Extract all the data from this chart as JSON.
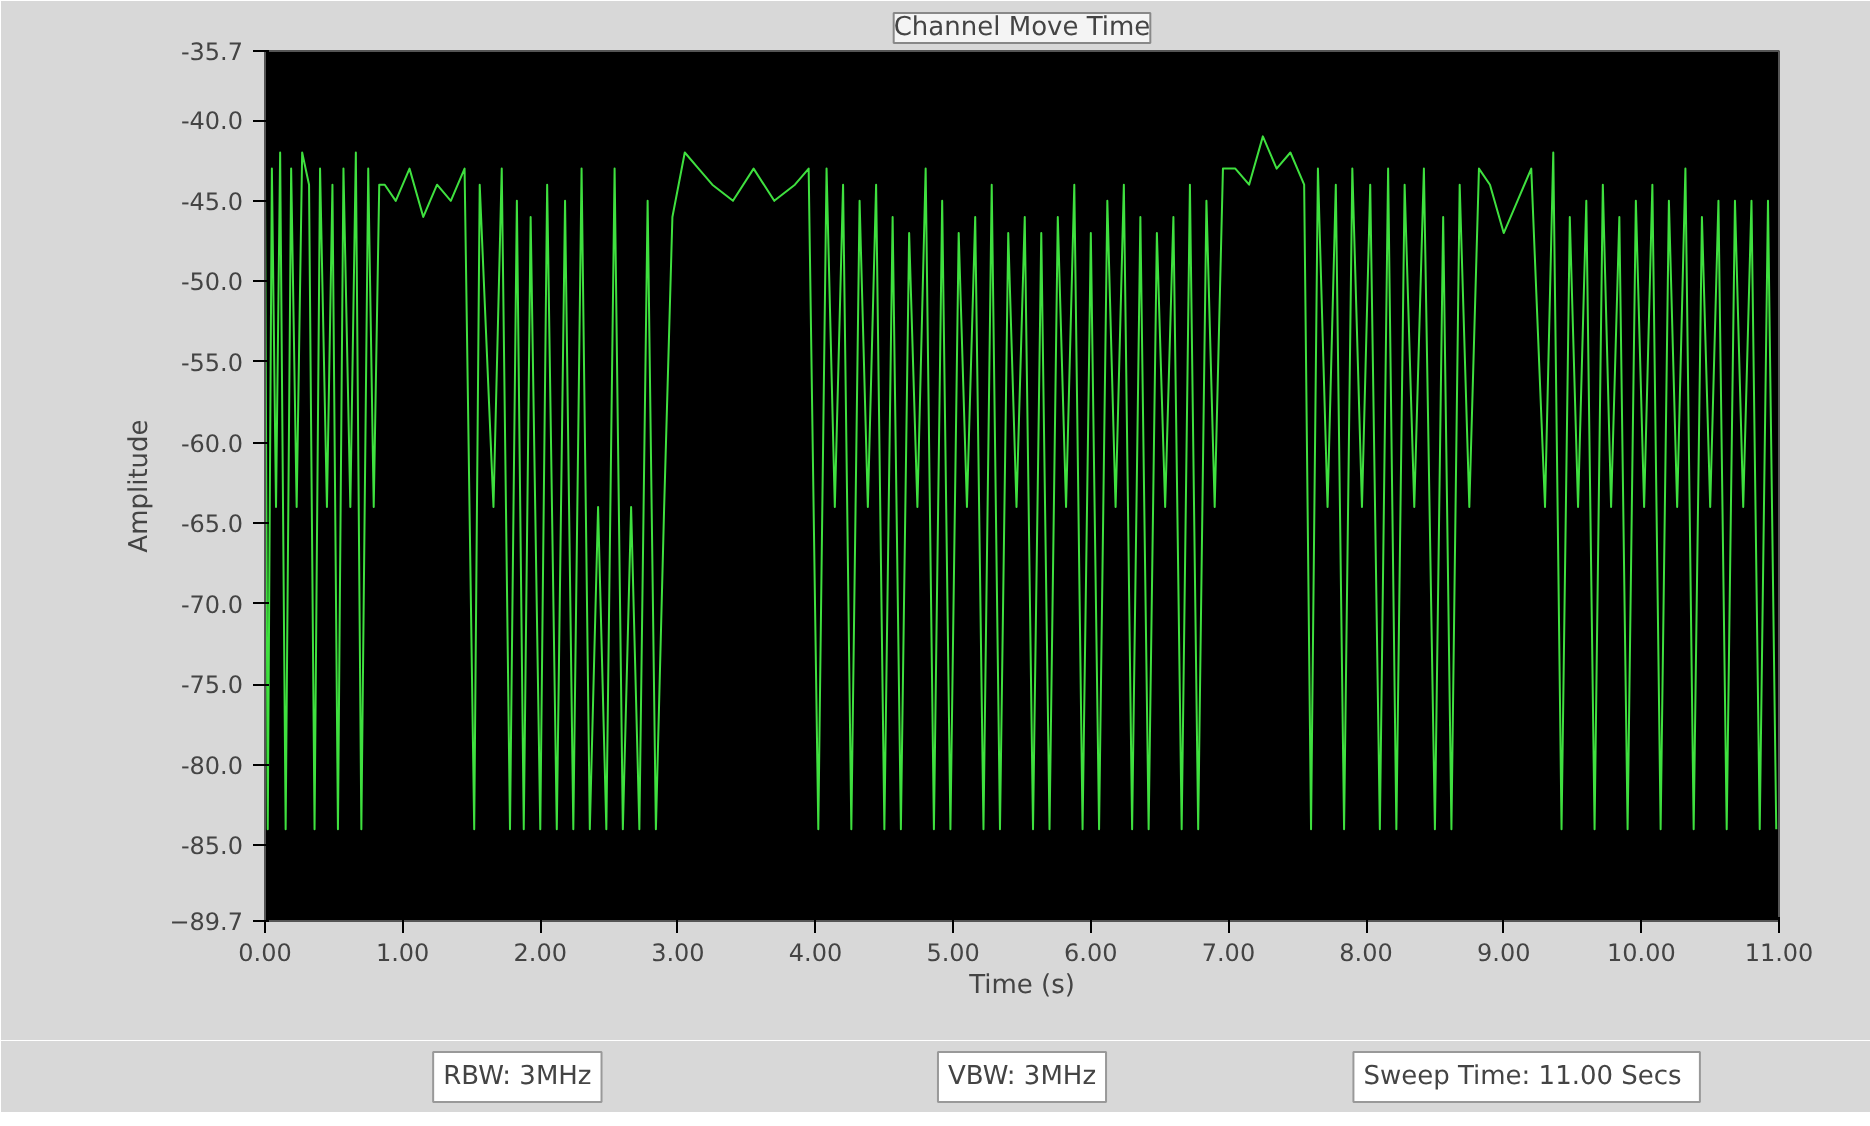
{
  "chart_data": {
    "type": "line",
    "title": "Channel Move Time",
    "xlabel": "Time (s)",
    "ylabel": "Amplitude",
    "xlim": [
      0,
      11
    ],
    "ylim": [
      -89.7,
      -35.7
    ],
    "xticks": [
      {
        "value": 0,
        "label": "0.00"
      },
      {
        "value": 1,
        "label": "1.00"
      },
      {
        "value": 2,
        "label": "2.00"
      },
      {
        "value": 3,
        "label": "3.00"
      },
      {
        "value": 4,
        "label": "4.00"
      },
      {
        "value": 5,
        "label": "5.00"
      },
      {
        "value": 6,
        "label": "6.00"
      },
      {
        "value": 7,
        "label": "7.00"
      },
      {
        "value": 8,
        "label": "8.00"
      },
      {
        "value": 9,
        "label": "9.00"
      },
      {
        "value": 10,
        "label": "10.00"
      },
      {
        "value": 11,
        "label": "11.00"
      }
    ],
    "yticks": [
      {
        "value": -35.7,
        "label": "-35.7"
      },
      {
        "value": -40,
        "label": "-40.0"
      },
      {
        "value": -45,
        "label": "-45.0"
      },
      {
        "value": -50,
        "label": "-50.0"
      },
      {
        "value": -55,
        "label": "-55.0"
      },
      {
        "value": -60,
        "label": "-60.0"
      },
      {
        "value": -65,
        "label": "-65.0"
      },
      {
        "value": -70,
        "label": "-70.0"
      },
      {
        "value": -75,
        "label": "-75.0"
      },
      {
        "value": -80,
        "label": "-80.0"
      },
      {
        "value": -85,
        "label": "-85.0"
      },
      -89.7
    ],
    "grid": false,
    "marker": "none",
    "line_style": "solid",
    "series": [
      {
        "color": "#3fe03f",
        "x": [
          0.0,
          0.02,
          0.05,
          0.08,
          0.11,
          0.15,
          0.19,
          0.23,
          0.27,
          0.32,
          0.36,
          0.4,
          0.45,
          0.49,
          0.53,
          0.57,
          0.62,
          0.66,
          0.7,
          0.75,
          0.79,
          0.83,
          0.87,
          0.95,
          1.05,
          1.15,
          1.25,
          1.35,
          1.45,
          1.52,
          1.56,
          1.66,
          1.72,
          1.78,
          1.83,
          1.88,
          1.93,
          2.0,
          2.05,
          2.12,
          2.18,
          2.24,
          2.3,
          2.36,
          2.42,
          2.48,
          2.54,
          2.6,
          2.66,
          2.72,
          2.78,
          2.84,
          2.9,
          2.96,
          3.05,
          3.15,
          3.25,
          3.4,
          3.55,
          3.7,
          3.85,
          3.95,
          4.02,
          4.08,
          4.14,
          4.2,
          4.26,
          4.32,
          4.38,
          4.44,
          4.5,
          4.56,
          4.62,
          4.68,
          4.74,
          4.8,
          4.86,
          4.92,
          4.98,
          5.04,
          5.1,
          5.16,
          5.22,
          5.28,
          5.34,
          5.4,
          5.46,
          5.52,
          5.58,
          5.64,
          5.7,
          5.76,
          5.82,
          5.88,
          5.94,
          6.0,
          6.06,
          6.12,
          6.18,
          6.24,
          6.3,
          6.36,
          6.42,
          6.48,
          6.54,
          6.6,
          6.66,
          6.72,
          6.78,
          6.84,
          6.9,
          6.96,
          7.05,
          7.15,
          7.25,
          7.35,
          7.45,
          7.55,
          7.6,
          7.65,
          7.72,
          7.78,
          7.84,
          7.9,
          7.97,
          8.03,
          8.1,
          8.16,
          8.22,
          8.28,
          8.35,
          8.42,
          8.5,
          8.56,
          8.62,
          8.68,
          8.75,
          8.82,
          8.9,
          9.0,
          9.1,
          9.2,
          9.3,
          9.36,
          9.42,
          9.48,
          9.54,
          9.6,
          9.66,
          9.72,
          9.78,
          9.84,
          9.9,
          9.96,
          10.02,
          10.08,
          10.14,
          10.2,
          10.26,
          10.32,
          10.38,
          10.44,
          10.5,
          10.56,
          10.62,
          10.68,
          10.74,
          10.8,
          10.86,
          10.92,
          10.98
        ],
        "values": [
          -44,
          -84,
          -43,
          -64,
          -42,
          -84,
          -43,
          -64,
          -42,
          -44,
          -84,
          -43,
          -64,
          -44,
          -84,
          -43,
          -64,
          -42,
          -84,
          -43,
          -64,
          -44,
          -44,
          -45,
          -43,
          -46,
          -44,
          -45,
          -43,
          -84,
          -44,
          -64,
          -43,
          -84,
          -45,
          -84,
          -46,
          -84,
          -44,
          -84,
          -45,
          -84,
          -43,
          -84,
          -64,
          -84,
          -43,
          -84,
          -64,
          -84,
          -45,
          -84,
          -64,
          -46,
          -42,
          -43,
          -44,
          -45,
          -43,
          -45,
          -44,
          -43,
          -84,
          -43,
          -64,
          -44,
          -84,
          -45,
          -64,
          -44,
          -84,
          -46,
          -84,
          -47,
          -64,
          -43,
          -84,
          -45,
          -84,
          -47,
          -64,
          -46,
          -84,
          -44,
          -84,
          -47,
          -64,
          -46,
          -84,
          -47,
          -84,
          -46,
          -64,
          -44,
          -84,
          -47,
          -84,
          -45,
          -64,
          -44,
          -84,
          -46,
          -84,
          -47,
          -64,
          -46,
          -84,
          -44,
          -84,
          -45,
          -64,
          -43,
          -43,
          -44,
          -41,
          -43,
          -42,
          -44,
          -84,
          -43,
          -64,
          -44,
          -84,
          -43,
          -64,
          -44,
          -84,
          -43,
          -84,
          -44,
          -64,
          -43,
          -84,
          -46,
          -84,
          -44,
          -64,
          -43,
          -44,
          -47,
          -45,
          -43,
          -64,
          -42,
          -84,
          -46,
          -64,
          -45,
          -84,
          -44,
          -64,
          -46,
          -84,
          -45,
          -64,
          -44,
          -84,
          -45,
          -64,
          -43,
          -84,
          -46,
          -64,
          -45,
          -84,
          -45,
          -64,
          -45,
          -84,
          -45,
          -84
        ]
      }
    ],
    "annotations": [
      "RBW: 3MHz",
      "VBW: 3MHz",
      "Sweep Time: 11.00  Secs"
    ]
  }
}
